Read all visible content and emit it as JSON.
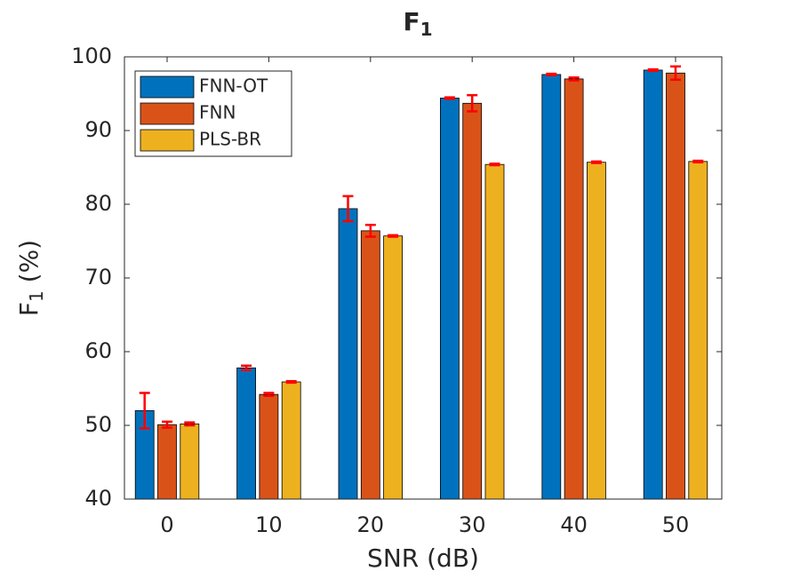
{
  "chart_data": {
    "type": "bar",
    "title": [
      "F",
      "1"
    ],
    "xlabel": "SNR (dB)",
    "ylabel": [
      "F",
      "1",
      " (%)"
    ],
    "categories": [
      "0",
      "10",
      "20",
      "30",
      "40",
      "50"
    ],
    "series": [
      {
        "name": "FNN-OT",
        "color": "#0072BD",
        "values": [
          52.0,
          57.8,
          79.4,
          94.4,
          97.6,
          98.2
        ],
        "errors": [
          2.4,
          0.3,
          1.7,
          0.1,
          0.1,
          0.1
        ]
      },
      {
        "name": "FNN",
        "color": "#D95319",
        "values": [
          50.1,
          54.2,
          76.4,
          93.7,
          97.0,
          97.8
        ],
        "errors": [
          0.4,
          0.2,
          0.8,
          1.1,
          0.2,
          0.9
        ]
      },
      {
        "name": "PLS-BR",
        "color": "#EDB120",
        "values": [
          50.2,
          55.9,
          75.7,
          85.4,
          85.7,
          85.8
        ],
        "errors": [
          0.2,
          0.1,
          0.1,
          0.1,
          0.1,
          0.1
        ]
      }
    ],
    "error_color": "#FF0000",
    "ylim": [
      40,
      100
    ],
    "yticks": [
      40,
      50,
      60,
      70,
      80,
      90,
      100
    ],
    "legend": "upper-left"
  }
}
